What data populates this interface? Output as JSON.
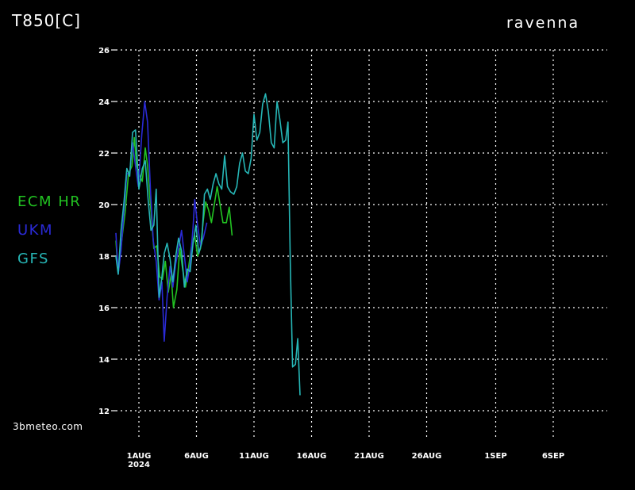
{
  "title": "T850[C]",
  "location": "ravenna",
  "watermark": "3bmeteo.com",
  "colors": {
    "background": "#000000",
    "grid": "#ffffff"
  },
  "chart_data": {
    "type": "line",
    "ylim": [
      11.5,
      26.3
    ],
    "y_ticks": [
      12,
      14,
      16,
      18,
      20,
      22,
      24,
      26
    ],
    "x_ticks": [
      {
        "day": 0,
        "label": "1AUG",
        "sub": "2024"
      },
      {
        "day": 5,
        "label": "6AUG"
      },
      {
        "day": 10,
        "label": "11AUG"
      },
      {
        "day": 15,
        "label": "16AUG"
      },
      {
        "day": 20,
        "label": "21AUG"
      },
      {
        "day": 25,
        "label": "26AUG"
      },
      {
        "day": 31,
        "label": "1SEP"
      },
      {
        "day": 36,
        "label": "6SEP"
      }
    ],
    "x_unit": "days since 1 Aug 2024",
    "grid": true,
    "legend_position": "left",
    "series": [
      {
        "name": "ECM HR",
        "color": "#22c322",
        "points": [
          [
            -2,
            18.6
          ],
          [
            -1.8,
            17.3
          ],
          [
            -1.5,
            18.6
          ],
          [
            -1.2,
            19.7
          ],
          [
            -0.9,
            21.2
          ],
          [
            -0.6,
            21.5
          ],
          [
            -0.4,
            22.6
          ],
          [
            -0.2,
            21.5
          ],
          [
            0.1,
            21.1
          ],
          [
            0.3,
            20.9
          ],
          [
            0.55,
            22.2
          ],
          [
            0.75,
            21.5
          ],
          [
            1.0,
            20.0
          ],
          [
            1.3,
            18.3
          ],
          [
            1.55,
            18.4
          ],
          [
            1.8,
            17.2
          ],
          [
            2.05,
            17.1
          ],
          [
            2.3,
            17.8
          ],
          [
            2.55,
            16.6
          ],
          [
            2.8,
            17.3
          ],
          [
            3.0,
            16.0
          ],
          [
            3.3,
            16.7
          ],
          [
            3.55,
            18.3
          ],
          [
            3.8,
            17.5
          ],
          [
            4.05,
            16.8
          ],
          [
            4.3,
            17.5
          ],
          [
            4.6,
            18.5
          ],
          [
            4.85,
            18.8
          ],
          [
            5.1,
            18.0
          ],
          [
            5.35,
            18.3
          ],
          [
            5.6,
            19.4
          ],
          [
            5.8,
            20.1
          ],
          [
            6.05,
            19.8
          ],
          [
            6.3,
            19.3
          ],
          [
            6.55,
            20.0
          ],
          [
            6.8,
            20.7
          ],
          [
            7.05,
            20.0
          ],
          [
            7.3,
            19.3
          ],
          [
            7.6,
            19.3
          ],
          [
            7.85,
            19.9
          ],
          [
            8.1,
            18.8
          ]
        ]
      },
      {
        "name": "UKM",
        "color": "#2a2ad6",
        "points": [
          [
            -2,
            18.9
          ],
          [
            -1.8,
            17.3
          ],
          [
            -1.55,
            18.2
          ],
          [
            -1.3,
            19.8
          ],
          [
            -1.05,
            21.2
          ],
          [
            -0.8,
            21.2
          ],
          [
            -0.55,
            22.4
          ],
          [
            -0.3,
            21.5
          ],
          [
            -0.05,
            20.7
          ],
          [
            0.25,
            22.7
          ],
          [
            0.5,
            24.0
          ],
          [
            0.75,
            23.2
          ],
          [
            1.0,
            20.6
          ],
          [
            1.25,
            18.6
          ],
          [
            1.5,
            17.8
          ],
          [
            1.75,
            16.3
          ],
          [
            2.0,
            17.0
          ],
          [
            2.2,
            14.7
          ],
          [
            2.45,
            16.4
          ],
          [
            2.7,
            17.6
          ],
          [
            2.95,
            16.8
          ],
          [
            3.2,
            17.7
          ],
          [
            3.45,
            18.3
          ],
          [
            3.7,
            19.0
          ],
          [
            3.95,
            18.0
          ],
          [
            4.2,
            17.0
          ],
          [
            4.45,
            17.7
          ],
          [
            4.7,
            19.1
          ],
          [
            4.85,
            20.2
          ],
          [
            5.1,
            19.2
          ],
          [
            5.35,
            18.4
          ],
          [
            5.6,
            18.7
          ],
          [
            5.9,
            19.3
          ]
        ]
      },
      {
        "name": "GFS",
        "color": "#26b6b6",
        "points": [
          [
            -2,
            18.0
          ],
          [
            -1.8,
            17.3
          ],
          [
            -1.55,
            19.0
          ],
          [
            -1.3,
            20.1
          ],
          [
            -1.05,
            21.4
          ],
          [
            -0.8,
            21.1
          ],
          [
            -0.55,
            22.8
          ],
          [
            -0.3,
            22.9
          ],
          [
            0.0,
            20.6
          ],
          [
            0.3,
            21.4
          ],
          [
            0.55,
            21.7
          ],
          [
            0.8,
            20.2
          ],
          [
            1.05,
            19.0
          ],
          [
            1.3,
            19.2
          ],
          [
            1.5,
            20.6
          ],
          [
            1.75,
            16.4
          ],
          [
            2.0,
            17.2
          ],
          [
            2.2,
            18.1
          ],
          [
            2.45,
            18.5
          ],
          [
            2.7,
            17.9
          ],
          [
            2.95,
            17.0
          ],
          [
            3.2,
            18.0
          ],
          [
            3.45,
            18.7
          ],
          [
            3.7,
            18.2
          ],
          [
            3.95,
            16.8
          ],
          [
            4.2,
            17.5
          ],
          [
            4.45,
            17.4
          ],
          [
            4.7,
            18.5
          ],
          [
            4.95,
            19.2
          ],
          [
            5.2,
            18.1
          ],
          [
            5.45,
            18.5
          ],
          [
            5.7,
            20.4
          ],
          [
            5.95,
            20.6
          ],
          [
            6.2,
            20.2
          ],
          [
            6.45,
            20.8
          ],
          [
            6.7,
            21.2
          ],
          [
            6.95,
            20.8
          ],
          [
            7.2,
            20.6
          ],
          [
            7.45,
            21.9
          ],
          [
            7.7,
            20.7
          ],
          [
            7.95,
            20.5
          ],
          [
            8.25,
            20.4
          ],
          [
            8.5,
            20.7
          ],
          [
            8.75,
            21.6
          ],
          [
            9.0,
            22.0
          ],
          [
            9.25,
            21.3
          ],
          [
            9.5,
            21.2
          ],
          [
            9.75,
            21.8
          ],
          [
            10.0,
            23.5
          ],
          [
            10.25,
            22.5
          ],
          [
            10.5,
            22.8
          ],
          [
            10.75,
            23.9
          ],
          [
            11.0,
            24.3
          ],
          [
            11.25,
            23.6
          ],
          [
            11.5,
            22.4
          ],
          [
            11.75,
            22.2
          ],
          [
            12.0,
            24.0
          ],
          [
            12.25,
            23.3
          ],
          [
            12.5,
            22.4
          ],
          [
            12.75,
            22.5
          ],
          [
            12.95,
            23.2
          ],
          [
            13.15,
            17.8
          ],
          [
            13.35,
            13.7
          ],
          [
            13.6,
            13.8
          ],
          [
            13.8,
            14.8
          ],
          [
            14.0,
            12.6
          ]
        ]
      }
    ]
  }
}
